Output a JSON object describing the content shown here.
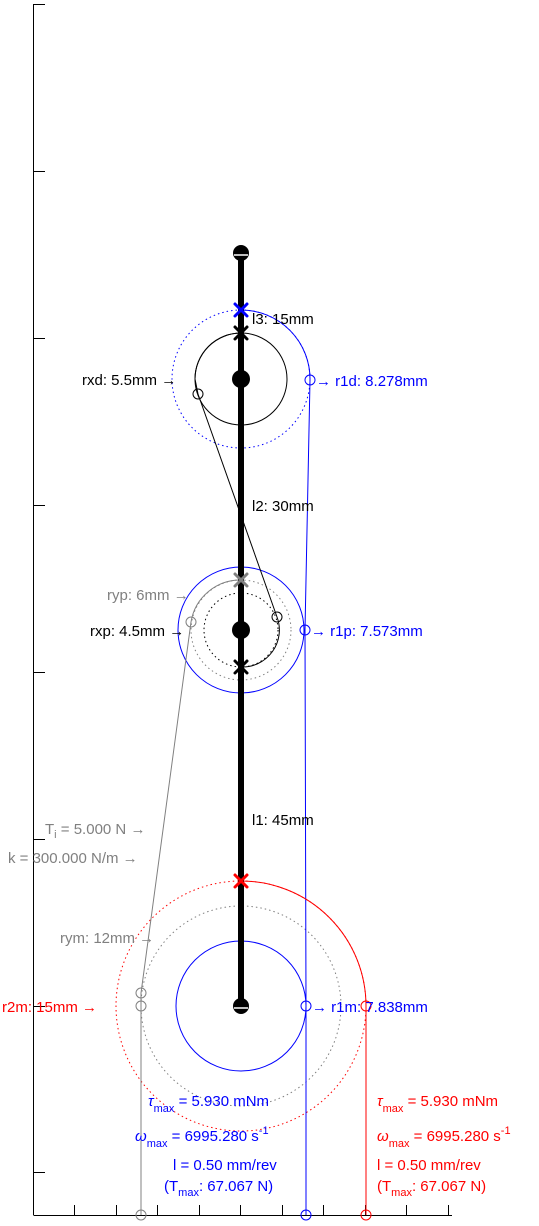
{
  "colors": {
    "black": "#000000",
    "blue": "#0000ff",
    "red": "#ff0000",
    "gray": "#808080"
  },
  "links": {
    "l1": "l1: 45mm",
    "l2": "l2: 30mm",
    "l3": "l3: 15mm"
  },
  "radii": {
    "rxd": "rxd: 5.5mm",
    "rxp": "rxp: 4.5mm",
    "ryp": "ryp: 6mm",
    "rym": "rym: 12mm",
    "r1d": "r1d: 8.278mm",
    "r1p": "r1p: 7.573mm",
    "r1m": "r1m: 7.838mm",
    "r2m": "r2m: 15mm"
  },
  "spring": {
    "ti_sym": "T",
    "ti_sub": "i",
    "ti_val": " = 5.000 N",
    "k": "k = 300.000 N/m"
  },
  "motor_blue": {
    "tau_sym": "τ",
    "tau_sub": "max",
    "tau_val": " = 5.930 mNm",
    "omega_sym": "ω",
    "omega_sub": "max",
    "omega_val": " = 6995.280 s",
    "omega_exp": "-1",
    "lead": "l = 0.50 mm/rev",
    "tmax_open": "(T",
    "tmax_sub": "max",
    "tmax_val": ": 67.067 N)"
  },
  "motor_red": {
    "tau_sym": "τ",
    "tau_sub": "max",
    "tau_val": " = 5.930 mNm",
    "omega_sym": "ω",
    "omega_sub": "max",
    "omega_val": " = 6995.280 s",
    "omega_exp": "-1",
    "lead": "l = 0.50 mm/rev",
    "tmax_open": "(T",
    "tmax_sub": "max",
    "tmax_val": ": 67.067 N)"
  },
  "arrow": "→"
}
